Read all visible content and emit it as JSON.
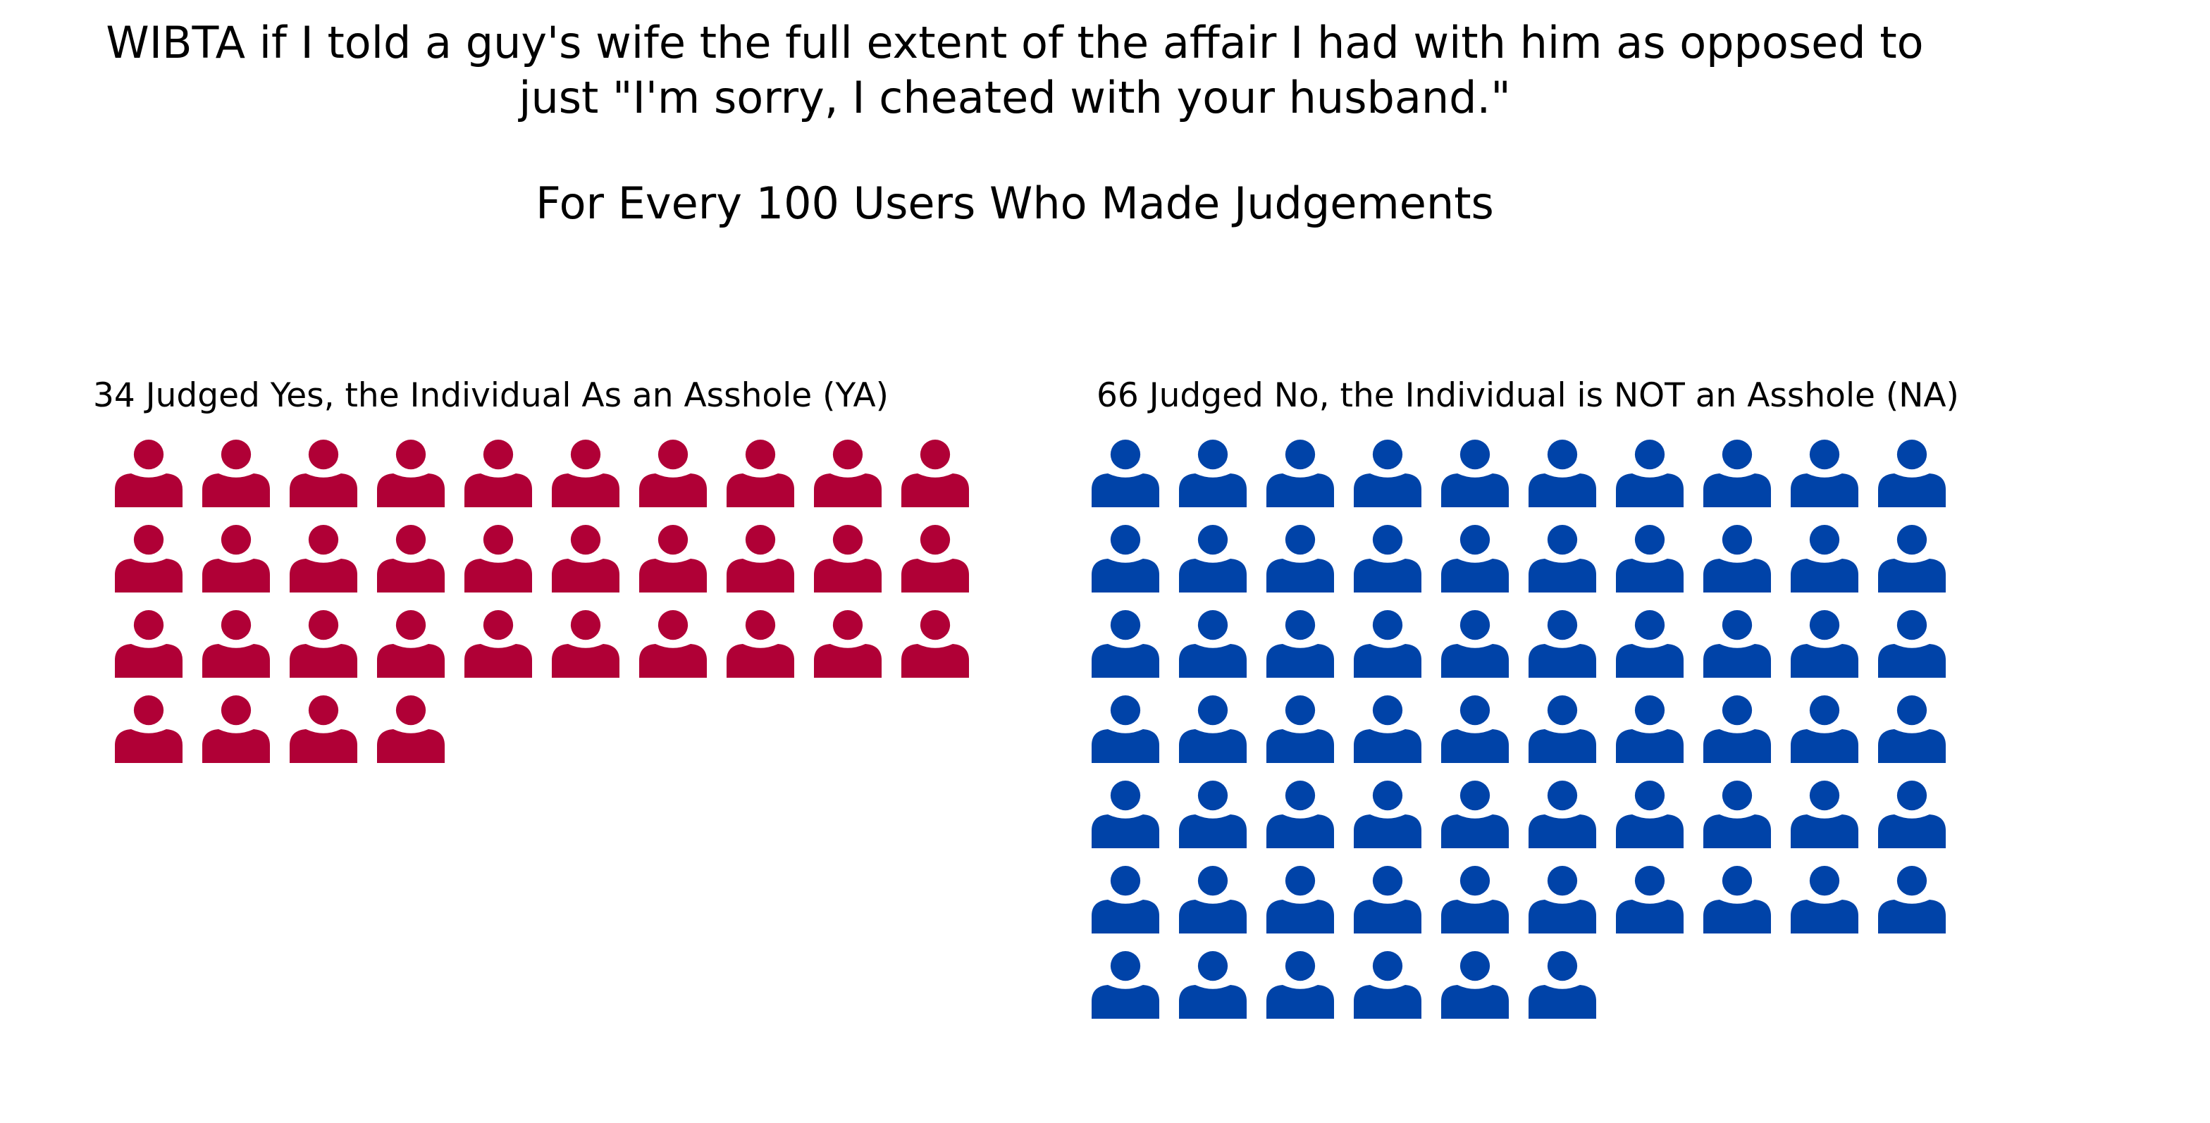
{
  "title_lines": [
    "WIBTA if I told a guy's wife the full extent of the affair I had with him as opposed to",
    "just \"I'm sorry, I cheated with your husband.\""
  ],
  "subtitle": "For Every 100 Users Who Made Judgements",
  "chart_data": {
    "type": "waffle",
    "icon": "person-icon",
    "columns": 10,
    "groups": [
      {
        "label": "34 Judged Yes, the Individual As an Asshole (YA)",
        "count": 34,
        "color": "#B00036"
      },
      {
        "label": "66 Judged No, the Individual is NOT an Asshole (NA)",
        "count": 66,
        "color": "#0043A8"
      }
    ]
  }
}
